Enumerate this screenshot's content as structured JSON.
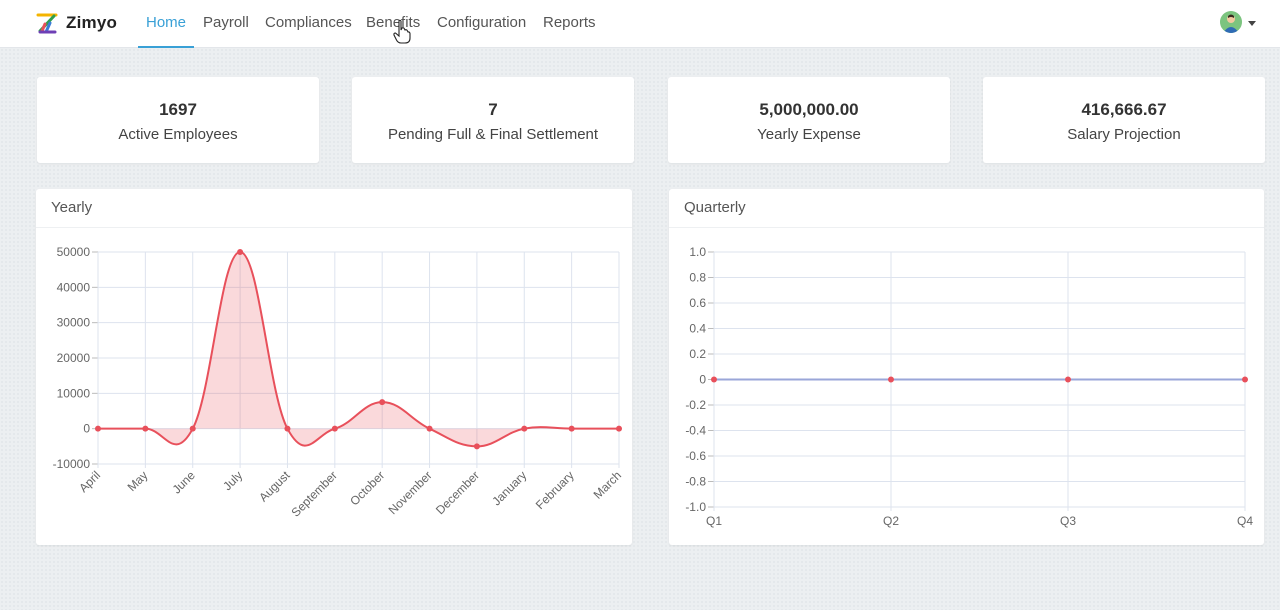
{
  "app": {
    "name": "Zimyo"
  },
  "nav": {
    "items": [
      {
        "label": "Home",
        "active": true
      },
      {
        "label": "Payroll",
        "active": false
      },
      {
        "label": "Compliances",
        "active": false
      },
      {
        "label": "Benefits",
        "active": false
      },
      {
        "label": "Configuration",
        "active": false
      },
      {
        "label": "Reports",
        "active": false
      }
    ]
  },
  "stats": [
    {
      "value": "1697",
      "label": "Active Employees"
    },
    {
      "value": "7",
      "label": "Pending Full & Final Settlement"
    },
    {
      "value": "5,000,000.00",
      "label": "Yearly Expense"
    },
    {
      "value": "416,666.67",
      "label": "Salary Projection"
    }
  ],
  "colors": {
    "accent": "#39a0d6",
    "series_line": "#e8505b",
    "series_fill": "rgba(232,80,91,0.22)",
    "grid": "#dde3ee"
  },
  "panels": {
    "yearly_title": "Yearly",
    "quarterly_title": "Quarterly"
  },
  "chart_data": [
    {
      "type": "area",
      "title": "Yearly",
      "categories": [
        "April",
        "May",
        "June",
        "July",
        "August",
        "September",
        "October",
        "November",
        "December",
        "January",
        "February",
        "March"
      ],
      "values": [
        0,
        0,
        0,
        50000,
        0,
        0,
        7500,
        0,
        -5000,
        0,
        0,
        0
      ],
      "ylim": [
        -10000,
        50000
      ],
      "yticks": [
        "50000",
        "40000",
        "30000",
        "20000",
        "10000",
        "0",
        "-10000"
      ],
      "grid": true
    },
    {
      "type": "line",
      "title": "Quarterly",
      "categories": [
        "Q1",
        "Q2",
        "Q3",
        "Q4"
      ],
      "values": [
        0,
        0,
        0,
        0
      ],
      "ylim": [
        -1.0,
        1.0
      ],
      "yticks": [
        "1.0",
        "0.8",
        "0.6",
        "0.4",
        "0.2",
        "0",
        "-0.2",
        "-0.4",
        "-0.6",
        "-0.8",
        "-1.0"
      ],
      "grid": true
    }
  ]
}
